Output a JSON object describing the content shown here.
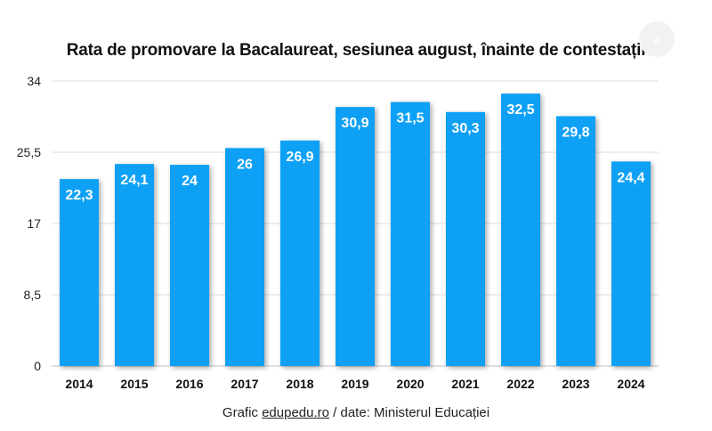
{
  "chart_data": {
    "type": "bar",
    "title": "Rata de promovare la Bacalaureat, sesiunea august, înainte de contestații",
    "categories": [
      "2014",
      "2015",
      "2016",
      "2017",
      "2018",
      "2019",
      "2020",
      "2021",
      "2022",
      "2023",
      "2024"
    ],
    "values": [
      22.3,
      24.1,
      24,
      26,
      26.9,
      30.9,
      31.5,
      30.3,
      32.5,
      29.8,
      24.4
    ],
    "value_labels": [
      "22,3",
      "24,1",
      "24",
      "26",
      "26,9",
      "30,9",
      "31,5",
      "30,3",
      "32,5",
      "29,8",
      "24,4"
    ],
    "y_ticks": [
      0,
      8.5,
      17,
      25.5,
      34
    ],
    "y_tick_labels": [
      "0",
      "8,5",
      "17",
      "25,5",
      "34"
    ],
    "ylim": [
      0,
      34
    ],
    "grid": true,
    "xlabel": "",
    "ylabel": "",
    "bar_color": "#0aa0f5"
  },
  "caption": {
    "prefix": "Grafic ",
    "link": "edupedu.ro",
    "suffix": " / date: Ministerul Educației"
  },
  "badge": "a"
}
